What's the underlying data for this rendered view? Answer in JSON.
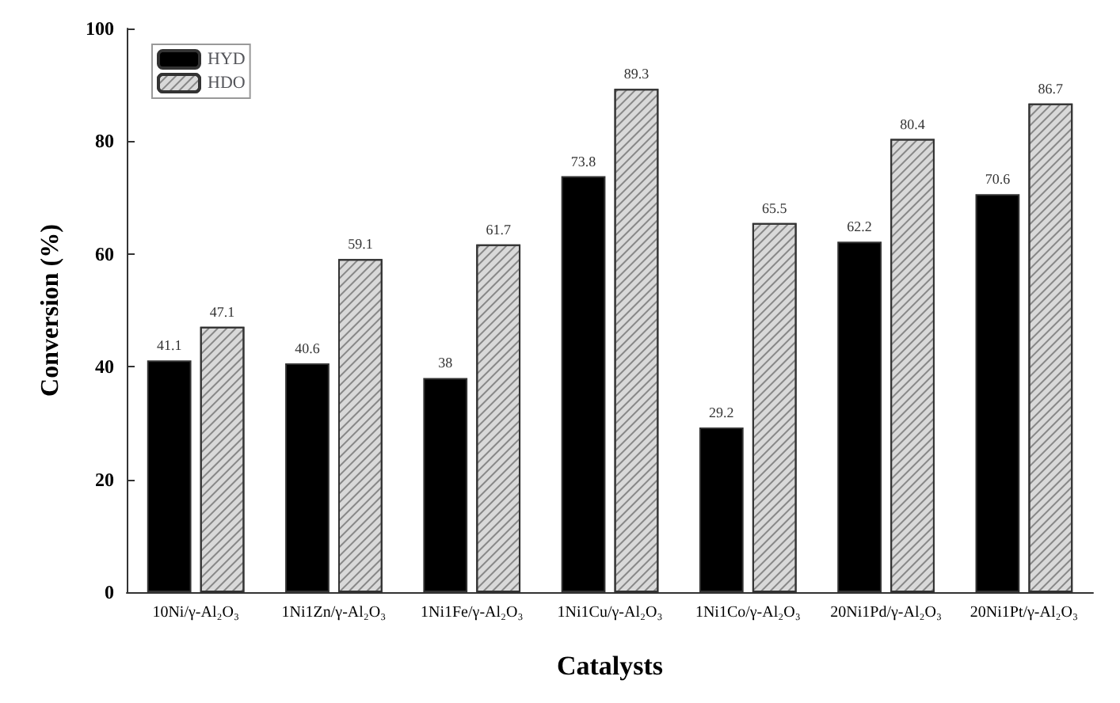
{
  "chart_data": {
    "type": "bar",
    "xlabel": "Catalysts",
    "ylabel": "Conversion (%)",
    "categories": [
      "10Ni/γ-Al₂O₃",
      "1Ni1Zn/γ-Al₂O₃",
      "1Ni1Fe/γ-Al₂O₃",
      "1Ni1Cu/γ-Al₂O₃",
      "1Ni1Co/γ-Al₂O₃",
      "20Ni1Pd/γ-Al₂O₃",
      "20Ni1Pt/γ-Al₂O₃"
    ],
    "series": [
      {
        "name": "HYD",
        "color": "#000000",
        "values": [
          41.1,
          40.6,
          38,
          73.8,
          29.2,
          62.2,
          70.6
        ]
      },
      {
        "name": "HDO",
        "color": "#d9d9d9",
        "values": [
          47.1,
          59.1,
          61.7,
          89.3,
          65.5,
          80.4,
          86.7
        ]
      }
    ],
    "ylim": [
      0,
      100
    ],
    "yticks": [
      0,
      20,
      40,
      60,
      80,
      100
    ],
    "grid": false,
    "legend": "top left",
    "data_labels": true
  }
}
